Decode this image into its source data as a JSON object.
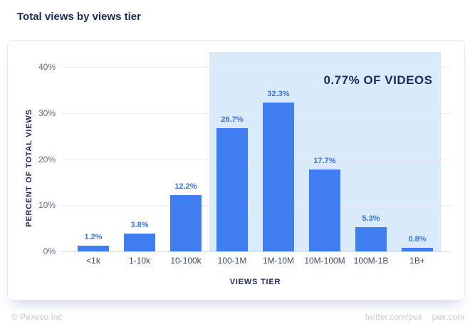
{
  "page": {
    "title": "Total views by views tier"
  },
  "footer": {
    "copyright": "© Pexeso Inc",
    "links": [
      "twitter.com/pex",
      "pex.com"
    ]
  },
  "chart_data": {
    "type": "bar",
    "title": "Total views by views tier",
    "categories": [
      "<1k",
      "1-10k",
      "10-100k",
      "100-1M",
      "1M-10M",
      "10M-100M",
      "100M-1B",
      "1B+"
    ],
    "values": [
      1.2,
      3.8,
      12.2,
      26.7,
      32.3,
      17.7,
      5.3,
      0.8
    ],
    "value_labels": [
      "1.2%",
      "3.8%",
      "12.2%",
      "26.7%",
      "32.3%",
      "17.7%",
      "5.3%",
      "0.8%"
    ],
    "xlabel": "VIEWS TIER",
    "ylabel": "PERCENT OF TOTAL VIEWS",
    "ylim": [
      0,
      40
    ],
    "yticks": [
      0,
      10,
      20,
      30,
      40
    ],
    "ytick_labels": [
      "0%",
      "10%",
      "20%",
      "30%",
      "40%"
    ],
    "grid": true,
    "legend": "none",
    "annotation": {
      "text": "0.77% OF VIDEOS",
      "highlight_start_index": 3,
      "highlight_categories": [
        "100-1M",
        "1M-10M",
        "10M-100M",
        "100M-1B",
        "1B+"
      ]
    },
    "colors": {
      "navy_text": "#1C2B5C",
      "bar_fill": "#3E7EF0",
      "highlight_fill": "#D9EAFB",
      "value_label": "#3C74E6",
      "tick_label": "#5E6880",
      "category_label": "#3D4A66",
      "gridline": "#EAECF2",
      "axis_line": "#D8DDE5",
      "footer_text": "#C6CAD4",
      "card_border": "#E9EAF1"
    }
  }
}
